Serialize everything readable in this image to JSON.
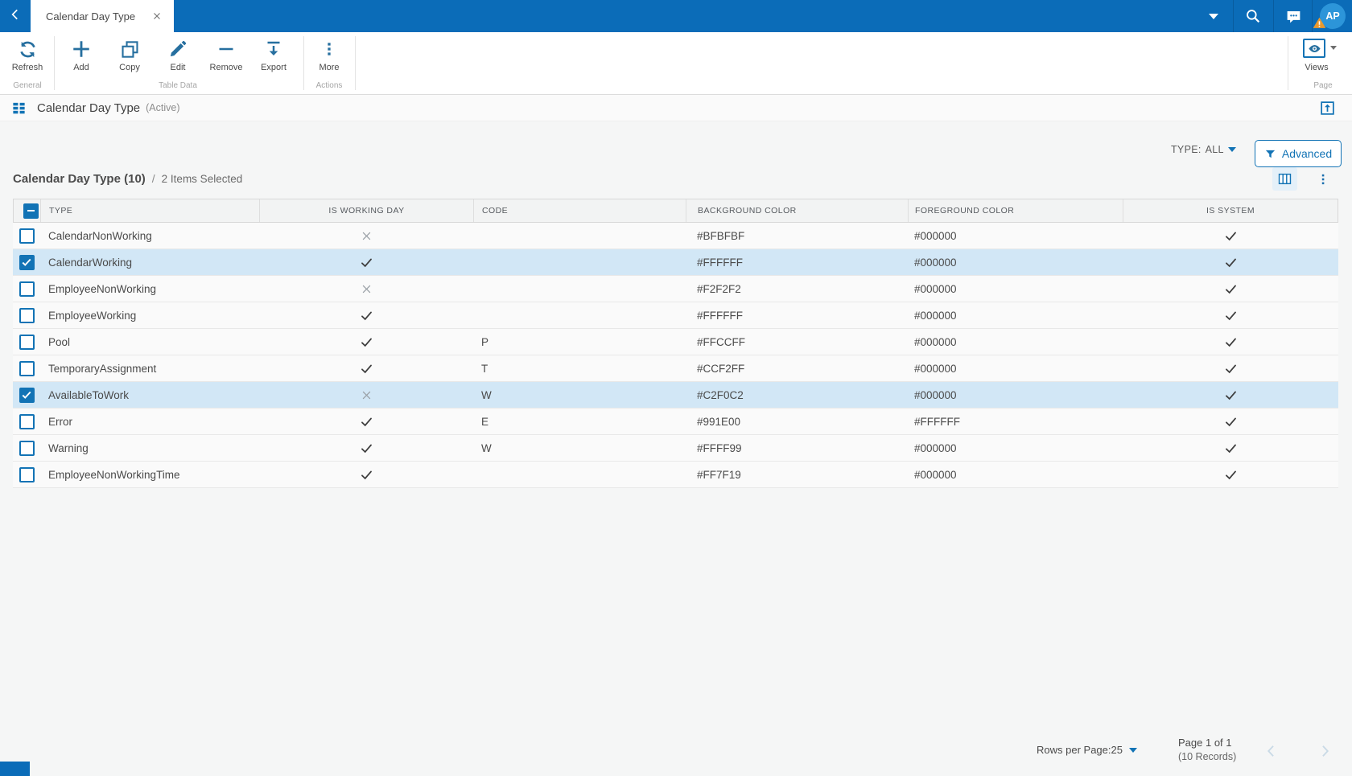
{
  "topbar": {
    "tab_title": "Calendar Day Type",
    "user_initials": "AP"
  },
  "ribbon": {
    "buttons": [
      {
        "label": "Refresh",
        "icon": "refresh-icon"
      },
      {
        "label": "Add",
        "icon": "add-icon"
      },
      {
        "label": "Copy",
        "icon": "copy-icon"
      },
      {
        "label": "Edit",
        "icon": "edit-icon"
      },
      {
        "label": "Remove",
        "icon": "remove-icon"
      },
      {
        "label": "Export",
        "icon": "export-icon"
      },
      {
        "label": "More",
        "icon": "more-icon"
      }
    ],
    "groups": {
      "general": "General",
      "table_data": "Table Data",
      "actions": "Actions",
      "page": "Page"
    },
    "views_label": "Views"
  },
  "page_header": {
    "title": "Calendar Day Type",
    "status": "(Active)"
  },
  "filter_bar": {
    "type_label": "TYPE:",
    "type_value": "ALL",
    "advanced_label": "Advanced"
  },
  "grid": {
    "title": "Calendar Day Type (10)",
    "separator": "/",
    "selection_summary": "2 Items Selected",
    "columns": [
      "TYPE",
      "IS WORKING DAY",
      "CODE",
      "BACKGROUND COLOR",
      "FOREGROUND COLOR",
      "IS SYSTEM"
    ],
    "rows": [
      {
        "type": "CalendarNonWorking",
        "is_working_day": false,
        "code": "",
        "background_color": "#BFBFBF",
        "foreground_color": "#000000",
        "is_system": true,
        "selected": false
      },
      {
        "type": "CalendarWorking",
        "is_working_day": true,
        "code": "",
        "background_color": "#FFFFFF",
        "foreground_color": "#000000",
        "is_system": true,
        "selected": true
      },
      {
        "type": "EmployeeNonWorking",
        "is_working_day": false,
        "code": "",
        "background_color": "#F2F2F2",
        "foreground_color": "#000000",
        "is_system": true,
        "selected": false
      },
      {
        "type": "EmployeeWorking",
        "is_working_day": true,
        "code": "",
        "background_color": "#FFFFFF",
        "foreground_color": "#000000",
        "is_system": true,
        "selected": false
      },
      {
        "type": "Pool",
        "is_working_day": true,
        "code": "P",
        "background_color": "#FFCCFF",
        "foreground_color": "#000000",
        "is_system": true,
        "selected": false
      },
      {
        "type": "TemporaryAssignment",
        "is_working_day": true,
        "code": "T",
        "background_color": "#CCF2FF",
        "foreground_color": "#000000",
        "is_system": true,
        "selected": false
      },
      {
        "type": "AvailableToWork",
        "is_working_day": false,
        "code": "W",
        "background_color": "#C2F0C2",
        "foreground_color": "#000000",
        "is_system": true,
        "selected": true
      },
      {
        "type": "Error",
        "is_working_day": true,
        "code": "E",
        "background_color": "#991E00",
        "foreground_color": "#FFFFFF",
        "is_system": true,
        "selected": false
      },
      {
        "type": "Warning",
        "is_working_day": true,
        "code": "W",
        "background_color": "#FFFF99",
        "foreground_color": "#000000",
        "is_system": true,
        "selected": false
      },
      {
        "type": "EmployeeNonWorkingTime",
        "is_working_day": true,
        "code": "",
        "background_color": "#FF7F19",
        "foreground_color": "#000000",
        "is_system": true,
        "selected": false
      }
    ]
  },
  "pagination": {
    "rows_per_page_label": "Rows per Page:",
    "rows_per_page_value": "25",
    "page_info": "Page 1 of 1",
    "records_info": "(10 Records)"
  },
  "colors": {
    "topbar_blue": "#0b6cb8",
    "accent_blue": "#1273b5",
    "icon_blue": "#266f9f",
    "selected_row": "#d2e7f6",
    "avatar_blue": "#2c95d9",
    "warning_badge": "#e8992e"
  }
}
